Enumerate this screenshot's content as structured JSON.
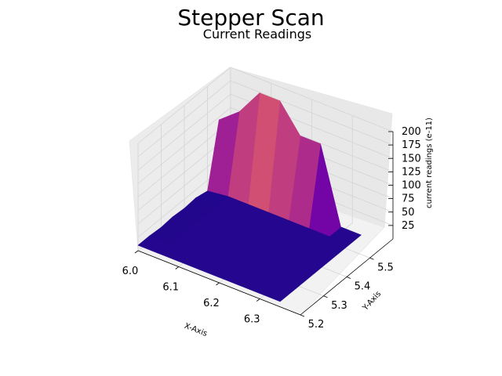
{
  "figure": {
    "suptitle": "Stepper Scan",
    "title": "Current Readings"
  },
  "chart_data": {
    "type": "surface3d",
    "colormap": "plasma",
    "x": [
      6.0,
      6.05,
      6.1,
      6.15,
      6.2,
      6.25,
      6.3,
      6.35
    ],
    "y": [
      5.2,
      5.25,
      5.3,
      5.35,
      5.4,
      5.45,
      5.5,
      5.55
    ],
    "z": [
      [
        10,
        10,
        10,
        10,
        10,
        10,
        10,
        10
      ],
      [
        10,
        10,
        10,
        10,
        10,
        10,
        10,
        10
      ],
      [
        8,
        10,
        10,
        10,
        10,
        10,
        10,
        10
      ],
      [
        10,
        10,
        10,
        10,
        10,
        10,
        10,
        10
      ],
      [
        8,
        10,
        10,
        10,
        10,
        10,
        10,
        10
      ],
      [
        10,
        10,
        10,
        10,
        10,
        10,
        10,
        10
      ],
      [
        5,
        10,
        10,
        10,
        10,
        10,
        10,
        10
      ],
      [
        120,
        150,
        200,
        200,
        150,
        150,
        10,
        10
      ]
    ],
    "xlabel": "X-Axis",
    "ylabel": "Y-Axis",
    "zlabel": "current readings (e-11)",
    "xticks": [
      "6.0",
      "6.1",
      "6.2",
      "6.3"
    ],
    "yticks": [
      "5.2",
      "5.3",
      "5.4",
      "5.5"
    ],
    "zticks": [
      "25",
      "50",
      "75",
      "100",
      "125",
      "150",
      "175",
      "200"
    ],
    "xlim": [
      6.0,
      6.4
    ],
    "ylim": [
      5.2,
      5.6
    ],
    "zlim": [
      0,
      200
    ],
    "grid": true
  }
}
